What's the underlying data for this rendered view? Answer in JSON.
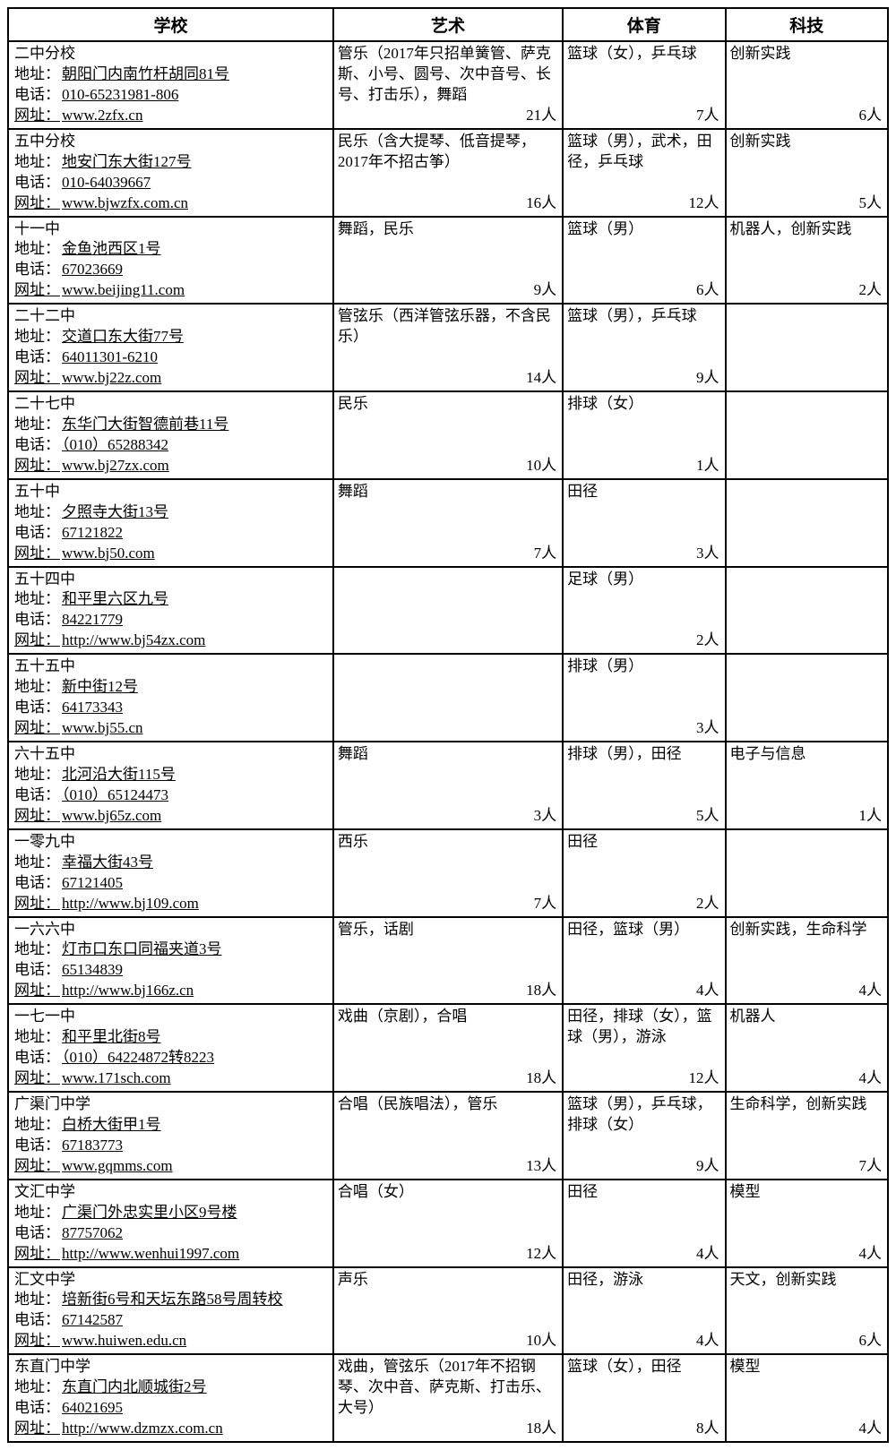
{
  "headers": {
    "school": "学校",
    "art": "艺术",
    "sport": "体育",
    "tech": "科技"
  },
  "labels": {
    "address": "地址：",
    "phone": "电话：",
    "website": "网址："
  },
  "count_suffix": "人",
  "rows": [
    {
      "name": "二中分校",
      "address": "朝阳门内南竹杆胡同81号",
      "phone": "010-65231981-806",
      "website": "www.2zfx.cn",
      "art": {
        "desc": "管乐（2017年只招单簧管、萨克斯、小号、圆号、次中音号、长号、打击乐），舞蹈",
        "count": 21
      },
      "sport": {
        "desc": "篮球（女），乒乓球",
        "count": 7
      },
      "tech": {
        "desc": "创新实践",
        "count": 6
      }
    },
    {
      "name": "五中分校",
      "address": "地安门东大街127号",
      "phone": "010-64039667",
      "website": "www.bjwzfx.com.cn",
      "art": {
        "desc": "民乐（含大提琴、低音提琴，2017年不招古筝）",
        "count": 16
      },
      "sport": {
        "desc": "篮球（男），武术，田径，乒乓球",
        "count": 12
      },
      "tech": {
        "desc": "创新实践",
        "count": 5
      }
    },
    {
      "name": "十一中",
      "address": "金鱼池西区1号",
      "phone": "67023669",
      "website": "www.beijing11.com",
      "art": {
        "desc": "舞蹈，民乐",
        "count": 9
      },
      "sport": {
        "desc": "篮球（男）",
        "count": 6
      },
      "tech": {
        "desc": "机器人，创新实践",
        "count": 2
      }
    },
    {
      "name": "二十二中",
      "address": "交道口东大街77号",
      "phone": "64011301-6210",
      "website": "www.bj22z.com",
      "art": {
        "desc": "管弦乐（西洋管弦乐器，不含民乐）",
        "count": 14
      },
      "sport": {
        "desc": "篮球（男），乒乓球",
        "count": 9
      },
      "tech": {
        "desc": "",
        "count": null
      }
    },
    {
      "name": "二十七中",
      "address": "东华门大街智德前巷11号",
      "phone": "（010）65288342",
      "website": "www.bj27zx.com",
      "art": {
        "desc": "民乐",
        "count": 10
      },
      "sport": {
        "desc": "排球（女）",
        "count": 1
      },
      "tech": {
        "desc": "",
        "count": null
      }
    },
    {
      "name": "五十中",
      "address": "夕照寺大街13号",
      "phone": "67121822",
      "website": "www.bj50.com",
      "art": {
        "desc": "舞蹈",
        "count": 7
      },
      "sport": {
        "desc": "田径",
        "count": 3
      },
      "tech": {
        "desc": "",
        "count": null
      }
    },
    {
      "name": "五十四中",
      "address": "和平里六区九号",
      "phone": "84221779",
      "website": "http://www.bj54zx.com",
      "art": {
        "desc": "",
        "count": null
      },
      "sport": {
        "desc": "足球（男）",
        "count": 2
      },
      "tech": {
        "desc": "",
        "count": null
      }
    },
    {
      "name": "五十五中",
      "address": "新中街12号",
      "phone": "64173343",
      "website": "www.bj55.cn",
      "art": {
        "desc": "",
        "count": null
      },
      "sport": {
        "desc": "排球（男）",
        "count": 3
      },
      "tech": {
        "desc": "",
        "count": null
      }
    },
    {
      "name": "六十五中",
      "address": "北河沿大街115号",
      "phone": "（010）65124473",
      "website": "www.bj65z.com",
      "art": {
        "desc": "舞蹈",
        "count": 3
      },
      "sport": {
        "desc": "排球（男），田径",
        "count": 5
      },
      "tech": {
        "desc": "电子与信息",
        "count": 1
      }
    },
    {
      "name": "一零九中",
      "address": "幸福大街43号",
      "phone": "67121405",
      "website": "http://www.bj109.com",
      "art": {
        "desc": "西乐",
        "count": 7
      },
      "sport": {
        "desc": "田径",
        "count": 2
      },
      "tech": {
        "desc": "",
        "count": null
      }
    },
    {
      "name": "一六六中",
      "address": "灯市口东口同福夹道3号",
      "phone": "65134839",
      "website": "http://www.bj166z.cn",
      "art": {
        "desc": "管乐，话剧",
        "count": 18
      },
      "sport": {
        "desc": "田径，篮球（男）",
        "count": 4
      },
      "tech": {
        "desc": "创新实践，生命科学",
        "count": 4
      }
    },
    {
      "name": "一七一中",
      "address": "和平里北街8号",
      "phone": "（010）64224872转8223",
      "website": "www.171sch.com",
      "art": {
        "desc": "戏曲（京剧），合唱",
        "count": 18
      },
      "sport": {
        "desc": "田径，排球（女），篮球（男），游泳",
        "count": 12
      },
      "tech": {
        "desc": "机器人",
        "count": 4
      }
    },
    {
      "name": "广渠门中学",
      "address": "白桥大街甲1号",
      "phone": "67183773",
      "website": "www.gqmms.com",
      "art": {
        "desc": "合唱（民族唱法），管乐",
        "count": 13
      },
      "sport": {
        "desc": "篮球（男），乒乓球，排球（女）",
        "count": 9
      },
      "tech": {
        "desc": "生命科学，创新实践",
        "count": 7
      }
    },
    {
      "name": "文汇中学",
      "address": "广渠门外忠实里小区9号楼",
      "phone": "87757062",
      "website": "http://www.wenhui1997.com",
      "art": {
        "desc": "合唱（女）",
        "count": 12
      },
      "sport": {
        "desc": "田径",
        "count": 4
      },
      "tech": {
        "desc": "模型",
        "count": 4
      }
    },
    {
      "name": "汇文中学",
      "address": "培新街6号和天坛东路58号周转校",
      "phone": "67142587",
      "website": "www.huiwen.edu.cn",
      "art": {
        "desc": "声乐",
        "count": 10
      },
      "sport": {
        "desc": "田径，游泳",
        "count": 4
      },
      "tech": {
        "desc": "天文，创新实践",
        "count": 6
      }
    },
    {
      "name": "东直门中学",
      "address": "东直门内北顺城街2号",
      "phone": "64021695",
      "website": "http://www.dzmzx.com.cn",
      "art": {
        "desc": "戏曲，管弦乐（2017年不招钢琴、次中音、萨克斯、打击乐、大号）",
        "count": 18
      },
      "sport": {
        "desc": "篮球（女），田径",
        "count": 8
      },
      "tech": {
        "desc": "模型",
        "count": 4
      }
    }
  ]
}
